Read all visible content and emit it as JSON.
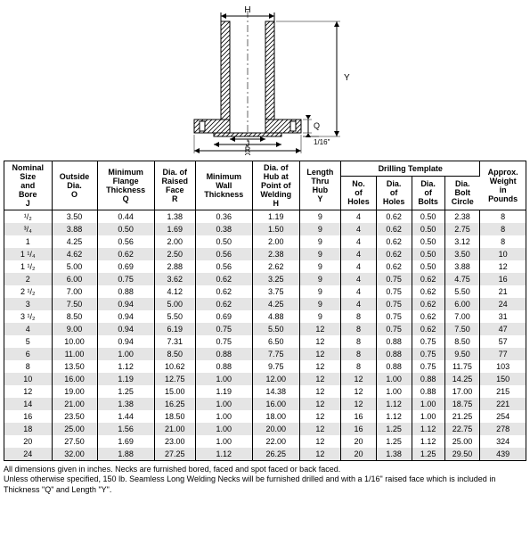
{
  "diagram": {
    "labels": {
      "H": "H",
      "Y": "Y",
      "Q": "Q",
      "J": "J",
      "R": "R",
      "O": "O",
      "raise": "1/16\""
    },
    "stroke": "#000000",
    "hatch": "#000000"
  },
  "table": {
    "group_header": "Drilling Template",
    "columns": [
      "Nominal\nSize\nand\nBore\nJ",
      "Outside\nDia.\nO",
      "Minimum\nFlange\nThickness\nQ",
      "Dia. of\nRaised\nFace\nR",
      "Minimum\nWall\nThickness",
      "Dia. of\nHub at\nPoint of\nWelding\nH",
      "Length\nThru\nHub\nY",
      "No.\nof\nHoles",
      "Dia.\nof\nHoles",
      "Dia.\nof\nBolts",
      "Dia.\nBolt\nCircle",
      "Approx.\nWeight\nin\nPounds"
    ],
    "rows": [
      [
        "¹/₂",
        "3.50",
        "0.44",
        "1.38",
        "0.36",
        "1.19",
        "9",
        "4",
        "0.62",
        "0.50",
        "2.38",
        "8"
      ],
      [
        "³/₄",
        "3.88",
        "0.50",
        "1.69",
        "0.38",
        "1.50",
        "9",
        "4",
        "0.62",
        "0.50",
        "2.75",
        "8"
      ],
      [
        "1",
        "4.25",
        "0.56",
        "2.00",
        "0.50",
        "2.00",
        "9",
        "4",
        "0.62",
        "0.50",
        "3.12",
        "8"
      ],
      [
        "1 ¹/₄",
        "4.62",
        "0.62",
        "2.50",
        "0.56",
        "2.38",
        "9",
        "4",
        "0.62",
        "0.50",
        "3.50",
        "10"
      ],
      [
        "1 ¹/₂",
        "5.00",
        "0.69",
        "2.88",
        "0.56",
        "2.62",
        "9",
        "4",
        "0.62",
        "0.50",
        "3.88",
        "12"
      ],
      [
        "2",
        "6.00",
        "0.75",
        "3.62",
        "0.62",
        "3.25",
        "9",
        "4",
        "0.75",
        "0.62",
        "4.75",
        "16"
      ],
      [
        "2 ¹/₂",
        "7.00",
        "0.88",
        "4.12",
        "0.62",
        "3.75",
        "9",
        "4",
        "0.75",
        "0.62",
        "5.50",
        "21"
      ],
      [
        "3",
        "7.50",
        "0.94",
        "5.00",
        "0.62",
        "4.25",
        "9",
        "4",
        "0.75",
        "0.62",
        "6.00",
        "24"
      ],
      [
        "3 ¹/₂",
        "8.50",
        "0.94",
        "5.50",
        "0.69",
        "4.88",
        "9",
        "8",
        "0.75",
        "0.62",
        "7.00",
        "31"
      ],
      [
        "4",
        "9.00",
        "0.94",
        "6.19",
        "0.75",
        "5.50",
        "12",
        "8",
        "0.75",
        "0.62",
        "7.50",
        "47"
      ],
      [
        "5",
        "10.00",
        "0.94",
        "7.31",
        "0.75",
        "6.50",
        "12",
        "8",
        "0.88",
        "0.75",
        "8.50",
        "57"
      ],
      [
        "6",
        "11.00",
        "1.00",
        "8.50",
        "0.88",
        "7.75",
        "12",
        "8",
        "0.88",
        "0.75",
        "9.50",
        "77"
      ],
      [
        "8",
        "13.50",
        "1.12",
        "10.62",
        "0.88",
        "9.75",
        "12",
        "8",
        "0.88",
        "0.75",
        "11.75",
        "103"
      ],
      [
        "10",
        "16.00",
        "1.19",
        "12.75",
        "1.00",
        "12.00",
        "12",
        "12",
        "1.00",
        "0.88",
        "14.25",
        "150"
      ],
      [
        "12",
        "19.00",
        "1.25",
        "15.00",
        "1.19",
        "14.38",
        "12",
        "12",
        "1.00",
        "0.88",
        "17.00",
        "215"
      ],
      [
        "14",
        "21.00",
        "1.38",
        "16.25",
        "1.00",
        "16.00",
        "12",
        "12",
        "1.12",
        "1.00",
        "18.75",
        "221"
      ],
      [
        "16",
        "23.50",
        "1.44",
        "18.50",
        "1.00",
        "18.00",
        "12",
        "16",
        "1.12",
        "1.00",
        "21.25",
        "254"
      ],
      [
        "18",
        "25.00",
        "1.56",
        "21.00",
        "1.00",
        "20.00",
        "12",
        "16",
        "1.25",
        "1.12",
        "22.75",
        "278"
      ],
      [
        "20",
        "27.50",
        "1.69",
        "23.00",
        "1.00",
        "22.00",
        "12",
        "20",
        "1.25",
        "1.12",
        "25.00",
        "324"
      ],
      [
        "24",
        "32.00",
        "1.88",
        "27.25",
        "1.12",
        "26.25",
        "12",
        "20",
        "1.38",
        "1.25",
        "29.50",
        "439"
      ]
    ]
  },
  "footnotes": [
    "All dimensions given in inches. Necks are furnished bored, faced and spot faced or back faced.",
    "Unless otherwise specified, 150 lb. Seamless Long Welding Necks will be furnished drilled and with a 1/16\" raised face which is included in Thickness \"Q\" and Length \"Y\"."
  ]
}
